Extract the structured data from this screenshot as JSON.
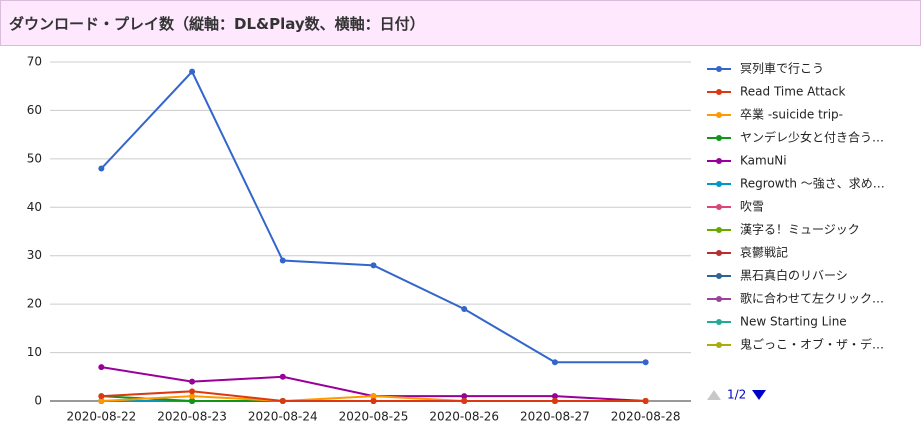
{
  "chart_data": {
    "type": "line",
    "title": "ダウンロード・プレイ数（縦軸：DL&Play数、横軸：日付）",
    "categories": [
      "2020-08-22",
      "2020-08-23",
      "2020-08-24",
      "2020-08-25",
      "2020-08-26",
      "2020-08-27",
      "2020-08-28"
    ],
    "series": [
      {
        "name": "冥列車で行こう",
        "color": "#3366cc",
        "values": [
          48,
          68,
          29,
          28,
          19,
          8,
          8
        ]
      },
      {
        "name": "Read Time Attack",
        "color": "#dc3912",
        "values": [
          1,
          2,
          0,
          0,
          0,
          0,
          0
        ]
      },
      {
        "name": "卒業 -suicide trip-",
        "color": "#ff9900",
        "values": [
          0,
          1,
          0,
          1,
          0,
          0,
          0
        ]
      },
      {
        "name": "ヤンデレ少女と付き合う…",
        "color": "#109618",
        "values": [
          1,
          0,
          0,
          0,
          0,
          0,
          0
        ]
      },
      {
        "name": "KamuNi",
        "color": "#990099",
        "values": [
          7,
          4,
          5,
          1,
          1,
          1,
          0
        ]
      },
      {
        "name": "Regrowth ～強さ、求め…",
        "color": "#0099c6",
        "values": [
          0,
          0,
          0,
          0,
          0,
          0,
          0
        ]
      },
      {
        "name": "吹雪",
        "color": "#dd4477",
        "values": [
          0,
          0,
          0,
          0,
          0,
          0,
          0
        ]
      },
      {
        "name": "漢字る！ミュージック",
        "color": "#66aa00",
        "values": [
          0,
          0,
          0,
          0,
          0,
          0,
          0
        ]
      },
      {
        "name": "哀鬱戦記",
        "color": "#b82e2e",
        "values": [
          0,
          0,
          0,
          0,
          0,
          0,
          0
        ]
      },
      {
        "name": "黒石真白のリバーシ",
        "color": "#316395",
        "values": [
          0,
          0,
          0,
          0,
          0,
          0,
          0
        ]
      },
      {
        "name": "歌に合わせて左クリック…",
        "color": "#994499",
        "values": [
          0,
          0,
          0,
          0,
          0,
          0,
          0
        ]
      },
      {
        "name": "New Starting Line",
        "color": "#22aa99",
        "values": [
          0,
          0,
          0,
          0,
          0,
          0,
          0
        ]
      },
      {
        "name": "鬼ごっこ・オブ・ザ・デ…",
        "color": "#aaaa11",
        "values": [
          0,
          0,
          0,
          0,
          0,
          0,
          0
        ]
      }
    ],
    "ylim": [
      0,
      70
    ],
    "yticks": [
      0,
      10,
      20,
      30,
      40,
      50,
      60,
      70
    ],
    "grid": true,
    "legend": "right",
    "legend_page": "1/2"
  }
}
